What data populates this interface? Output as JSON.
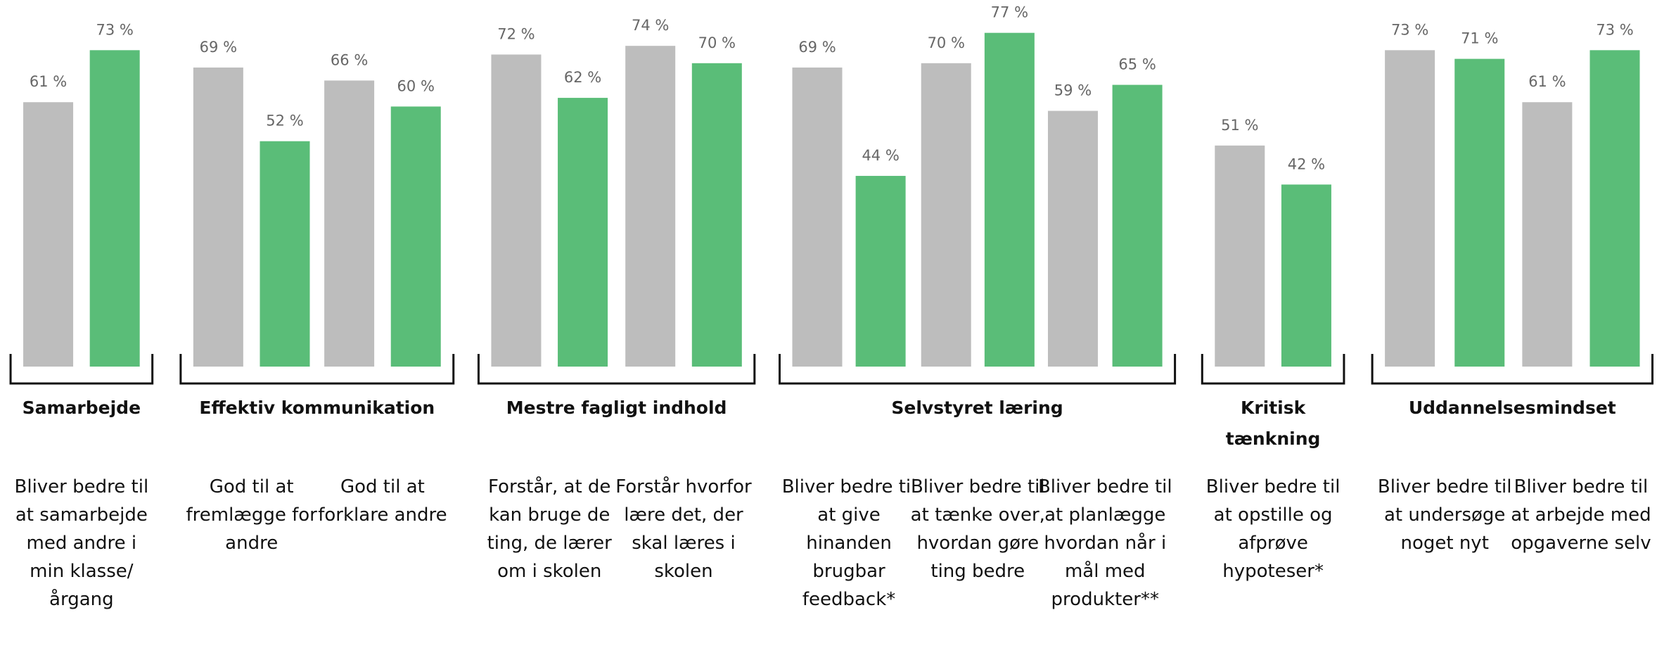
{
  "chart_data": {
    "type": "grouped-bar",
    "groups": [
      {
        "name": "Samarbejde",
        "categories": [
          "Bliver bedre til at samarbejde med andre i min klasse/ årgang"
        ]
      },
      {
        "name": "Effektiv kommunikation",
        "categories": [
          "God til at fremlægge for andre",
          "God til at forklare andre"
        ]
      },
      {
        "name": "Mestre fagligt indhold",
        "categories": [
          "Forstår, at de kan bruge de ting, de lærer om i skolen",
          "Forstår hvorfor lære det, der skal læres i skolen"
        ]
      },
      {
        "name": "Selvstyret læring",
        "categories": [
          "Bliver bedre til at give hinanden brugbar feedback*",
          "Bliver bedre til at tænke over, hvordan gøre ting bedre",
          "Bliver bedre til at planlægge hvordan når i mål med produkter**"
        ]
      },
      {
        "name": "Kritisk tænkning",
        "categories": [
          "Bliver bedre til at opstille og afprøve hypoteser*"
        ]
      },
      {
        "name": "Uddannelsesmindset",
        "categories": [
          "Bliver bedre til at undersøge noget nyt",
          "Bliver bedre til at arbejde med opgaverne selv"
        ]
      }
    ],
    "series": [
      {
        "color": "#bdbdbd",
        "values": [
          61,
          69,
          66,
          72,
          74,
          69,
          70,
          59,
          51,
          73,
          61
        ],
        "value_labels": [
          "61 %",
          "69 %",
          "66 %",
          "72 %",
          "74 %",
          "69 %",
          "70 %",
          "59 %",
          "51 %",
          "73 %",
          "61 %"
        ]
      },
      {
        "color": "#5abd78",
        "values": [
          73,
          52,
          60,
          62,
          70,
          44,
          77,
          65,
          42,
          71,
          73
        ],
        "value_labels": [
          "73 %",
          "52 %",
          "60 %",
          "62 %",
          "70 %",
          "44 %",
          "77 %",
          "65 %",
          "42 %",
          "71 %",
          "73 %"
        ]
      }
    ]
  }
}
